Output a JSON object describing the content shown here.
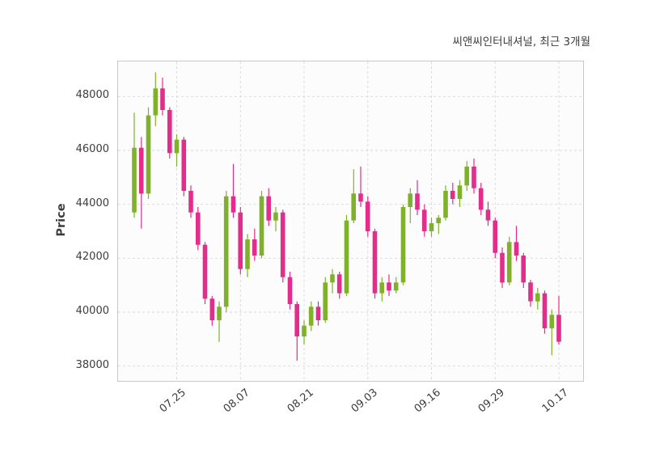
{
  "header": {
    "title": "씨앤씨인터내셔널, 최근 3개월"
  },
  "chart_data": {
    "type": "candlestick",
    "title": "씨앤씨인터내셔널, 최근 3개월",
    "ylabel": "Price",
    "y_ticks": [
      38000,
      40000,
      42000,
      44000,
      46000,
      48000
    ],
    "ylim": [
      37450,
      49300
    ],
    "x_tick_labels": [
      "07.25",
      "08.07",
      "08.21",
      "09.03",
      "09.16",
      "09.29",
      "10.17"
    ],
    "x_tick_indices": [
      6,
      15,
      24,
      33,
      42,
      51,
      60
    ],
    "grid": true,
    "grid_style": "dashed",
    "up_color": "#7fb22a",
    "down_color": "#e22d8d",
    "candles": [
      [
        43700,
        47400,
        43500,
        46100
      ],
      [
        46100,
        46500,
        43100,
        44400
      ],
      [
        44400,
        47600,
        44200,
        47300
      ],
      [
        47300,
        48900,
        46900,
        48300
      ],
      [
        48300,
        48700,
        47300,
        47500
      ],
      [
        47500,
        47600,
        45700,
        45900
      ],
      [
        45900,
        46600,
        45400,
        46400
      ],
      [
        46400,
        46500,
        44300,
        44500
      ],
      [
        44500,
        44700,
        43500,
        43700
      ],
      [
        43700,
        43900,
        42300,
        42500
      ],
      [
        42500,
        42600,
        40300,
        40500
      ],
      [
        40500,
        40600,
        39500,
        39700
      ],
      [
        39700,
        40400,
        38900,
        40200
      ],
      [
        40200,
        44500,
        40000,
        44300
      ],
      [
        44300,
        45500,
        43500,
        43700
      ],
      [
        43700,
        43900,
        41400,
        41600
      ],
      [
        41600,
        42900,
        41300,
        42700
      ],
      [
        42700,
        43100,
        41900,
        42100
      ],
      [
        42100,
        44500,
        42000,
        44300
      ],
      [
        44300,
        44600,
        43200,
        43400
      ],
      [
        43400,
        43900,
        43000,
        43700
      ],
      [
        43700,
        43800,
        41100,
        41300
      ],
      [
        41300,
        41500,
        40100,
        40300
      ],
      [
        40300,
        40400,
        38200,
        39100
      ],
      [
        39100,
        39700,
        38800,
        39500
      ],
      [
        39500,
        40400,
        39300,
        40200
      ],
      [
        40200,
        40400,
        39500,
        39700
      ],
      [
        39700,
        41300,
        39600,
        41100
      ],
      [
        41100,
        41600,
        40700,
        41400
      ],
      [
        41400,
        41500,
        40500,
        40700
      ],
      [
        40700,
        43600,
        40600,
        43400
      ],
      [
        43400,
        45300,
        43300,
        44400
      ],
      [
        44400,
        45400,
        43900,
        44100
      ],
      [
        44100,
        44300,
        42800,
        43000
      ],
      [
        43000,
        43100,
        40500,
        40700
      ],
      [
        40700,
        41300,
        40400,
        41100
      ],
      [
        41100,
        41400,
        40600,
        40800
      ],
      [
        40800,
        41300,
        40700,
        41100
      ],
      [
        41100,
        44000,
        41000,
        43900
      ],
      [
        43900,
        44600,
        43300,
        44400
      ],
      [
        44400,
        44900,
        43600,
        43800
      ],
      [
        43800,
        44000,
        42800,
        43000
      ],
      [
        43000,
        43500,
        42800,
        43300
      ],
      [
        43300,
        43600,
        42900,
        43500
      ],
      [
        43500,
        44700,
        43400,
        44500
      ],
      [
        44500,
        44800,
        44000,
        44200
      ],
      [
        44200,
        44900,
        43900,
        44700
      ],
      [
        44700,
        45600,
        44500,
        45400
      ],
      [
        45400,
        45700,
        44400,
        44600
      ],
      [
        44600,
        44800,
        43600,
        43800
      ],
      [
        43800,
        44100,
        43200,
        43400
      ],
      [
        43400,
        43500,
        42000,
        42200
      ],
      [
        42200,
        42400,
        40900,
        41100
      ],
      [
        41100,
        42800,
        41000,
        42600
      ],
      [
        42600,
        43200,
        41900,
        42100
      ],
      [
        42100,
        42200,
        40900,
        41100
      ],
      [
        41100,
        41200,
        40200,
        40400
      ],
      [
        40400,
        40900,
        40100,
        40700
      ],
      [
        40700,
        40800,
        39200,
        39400
      ],
      [
        39400,
        40100,
        38400,
        39900
      ],
      [
        39900,
        40600,
        38800,
        38900
      ]
    ]
  }
}
